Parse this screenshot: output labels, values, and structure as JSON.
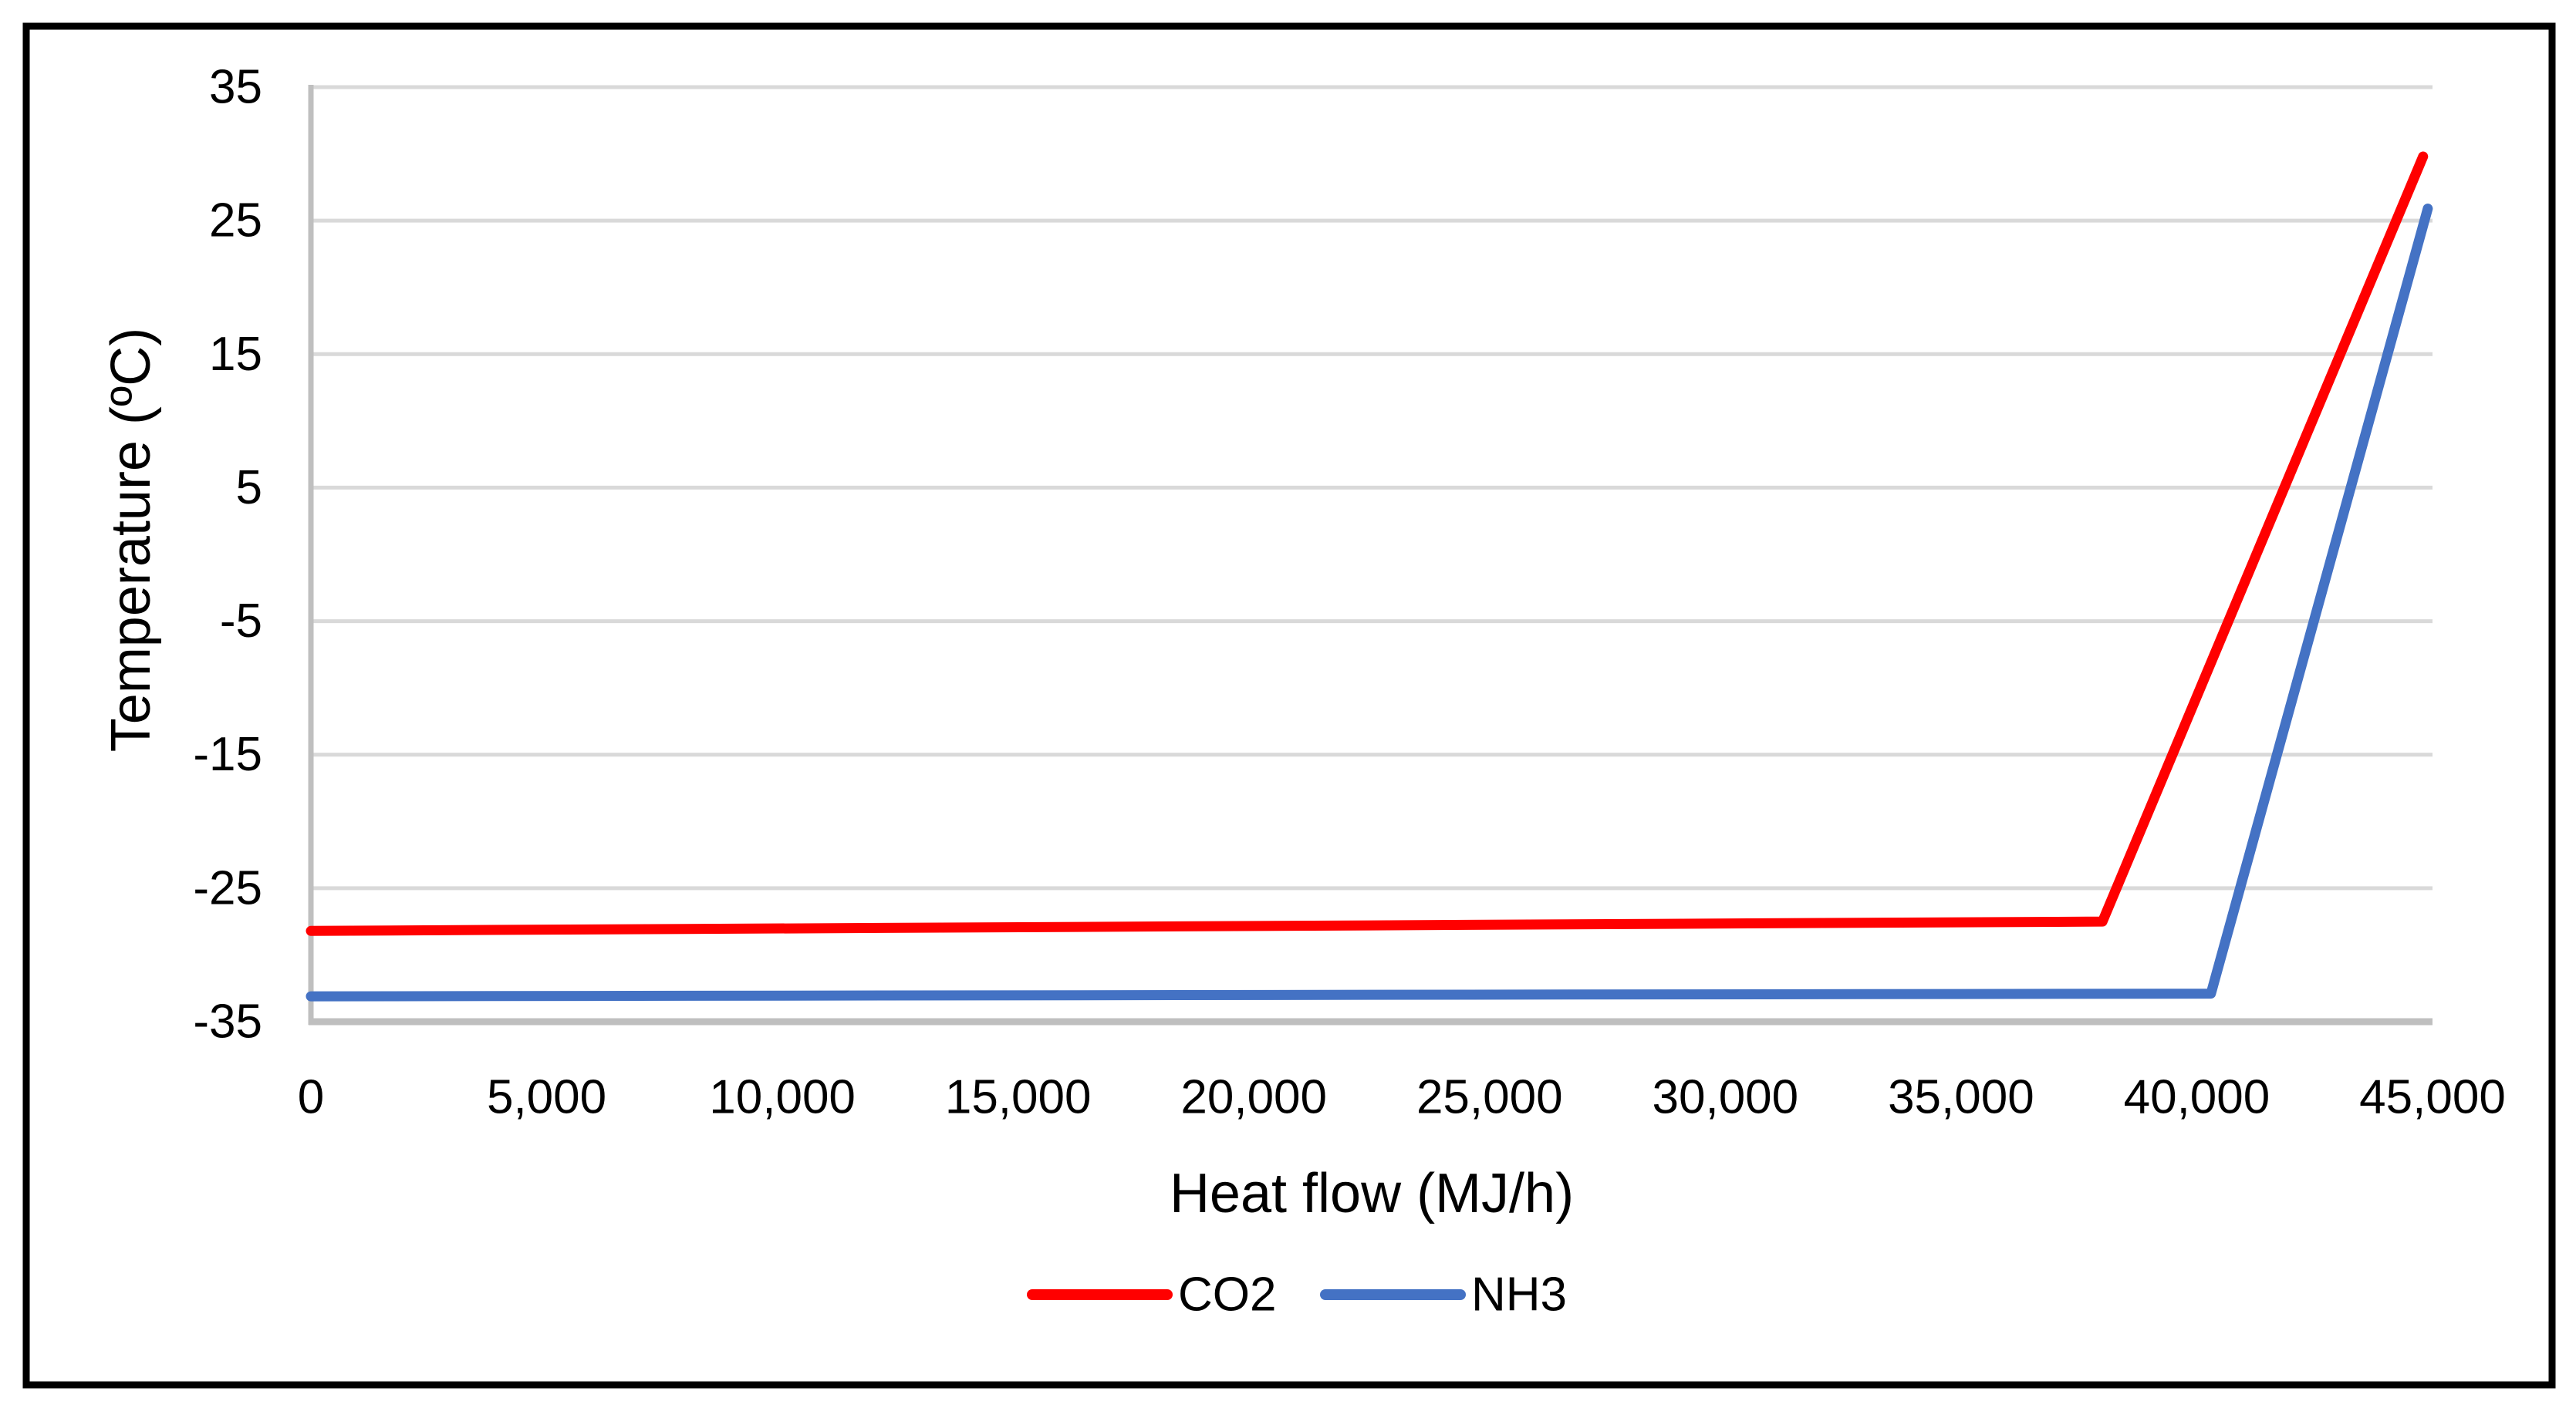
{
  "page": {
    "background": "#FFFFFF",
    "frame_color": "#000000"
  },
  "chart_data": {
    "type": "line",
    "title": "",
    "xlabel": "Heat flow (MJ/h)",
    "ylabel": "Temperature (ºC)",
    "xlim": [
      0,
      45000
    ],
    "ylim": [
      -35,
      35
    ],
    "x_ticks": [
      0,
      5000,
      10000,
      15000,
      20000,
      25000,
      30000,
      35000,
      40000,
      45000
    ],
    "x_tick_labels": [
      "0",
      "5,000",
      "10,000",
      "15,000",
      "20,000",
      "25,000",
      "30,000",
      "35,000",
      "40,000",
      "45,000"
    ],
    "y_ticks": [
      35,
      25,
      15,
      5,
      -5,
      -15,
      -25,
      -35
    ],
    "y_tick_labels": [
      "35",
      "25",
      "15",
      "5",
      "-5",
      "-15",
      "-25",
      "-35"
    ],
    "grid": "horizontal-only",
    "legend_position": "bottom-center",
    "series": [
      {
        "name": "CO2",
        "color": "#FF0000",
        "points": [
          [
            0,
            -28.2
          ],
          [
            38000,
            -27.5
          ],
          [
            44800,
            29.8
          ]
        ]
      },
      {
        "name": "NH3",
        "color": "#4472C4",
        "points": [
          [
            0,
            -33.1
          ],
          [
            40300,
            -32.9
          ],
          [
            44900,
            25.9
          ]
        ]
      }
    ],
    "colors": {
      "gridline": "#D9D9D9",
      "axis": "#BFBFBF",
      "text": "#000000"
    }
  }
}
